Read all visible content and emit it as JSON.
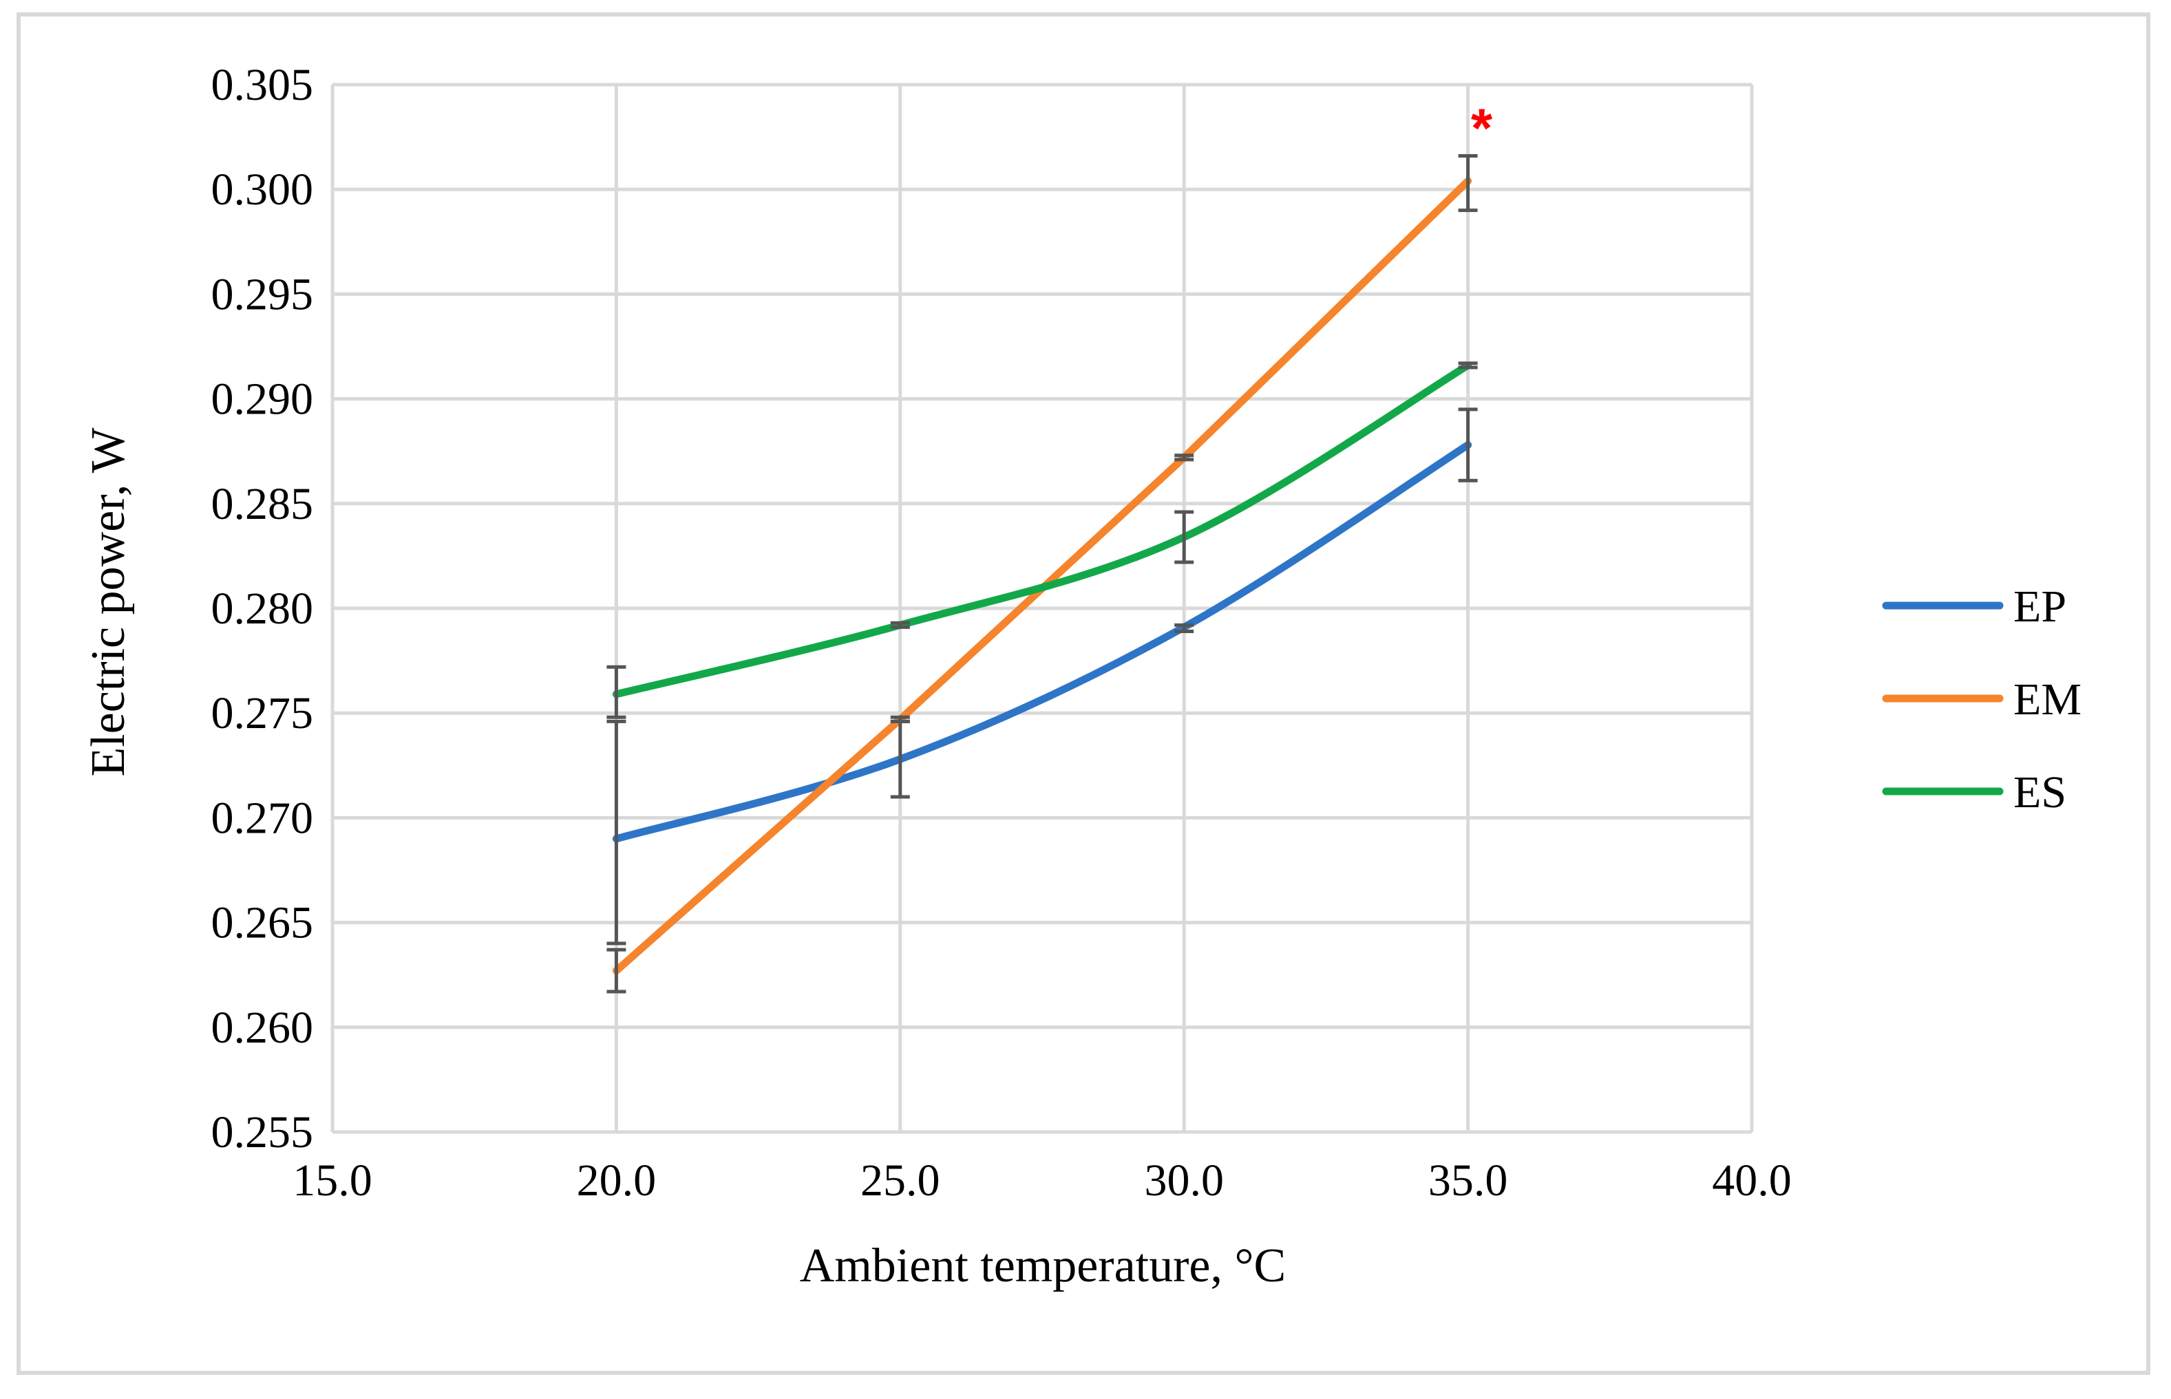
{
  "chart_data": {
    "type": "line",
    "title": "",
    "xlabel": "Ambient temperature, °C",
    "ylabel": "Electric power, W",
    "xlim": [
      15.0,
      40.0
    ],
    "ylim": [
      0.255,
      0.305
    ],
    "x_ticks": [
      15.0,
      20.0,
      25.0,
      30.0,
      35.0,
      40.0
    ],
    "x_tick_labels": [
      "15.0",
      "20.0",
      "25.0",
      "30.0",
      "35.0",
      "40.0"
    ],
    "y_ticks": [
      0.255,
      0.26,
      0.265,
      0.27,
      0.275,
      0.28,
      0.285,
      0.29,
      0.295,
      0.3,
      0.305
    ],
    "y_tick_labels": [
      "0.255",
      "0.260",
      "0.265",
      "0.270",
      "0.275",
      "0.280",
      "0.285",
      "0.290",
      "0.295",
      "0.300",
      "0.305"
    ],
    "grid": true,
    "legend_position": "right",
    "x": [
      20.0,
      25.0,
      30.0,
      35.0
    ],
    "series": [
      {
        "name": "EP",
        "color": "#2e75c7",
        "smooth": true,
        "values": [
          0.269,
          0.2728,
          0.2791,
          0.2878
        ],
        "error": [
          [
            0.264,
            0.2746
          ],
          [
            0.271,
            0.2746
          ],
          [
            0.2789,
            0.2792
          ],
          [
            0.2861,
            0.2895
          ]
        ]
      },
      {
        "name": "EM",
        "color": "#f5842c",
        "smooth": false,
        "values": [
          0.2627,
          0.2747,
          0.2872,
          0.3004
        ],
        "error": [
          [
            0.2617,
            0.2637
          ],
          [
            0.2746,
            0.2748
          ],
          [
            0.2871,
            0.2873
          ],
          [
            0.299,
            0.3016
          ]
        ]
      },
      {
        "name": "ES",
        "color": "#12a84a",
        "smooth": true,
        "values": [
          0.2759,
          0.2792,
          0.2834,
          0.2916
        ],
        "error": [
          [
            0.2748,
            0.2772
          ],
          [
            0.2791,
            0.2793
          ],
          [
            0.2822,
            0.2846
          ],
          [
            0.2915,
            0.2917
          ]
        ]
      }
    ],
    "annotations": [
      {
        "text": "*",
        "x": 35.0,
        "y": 0.3035,
        "color": "#ff0000"
      }
    ]
  }
}
